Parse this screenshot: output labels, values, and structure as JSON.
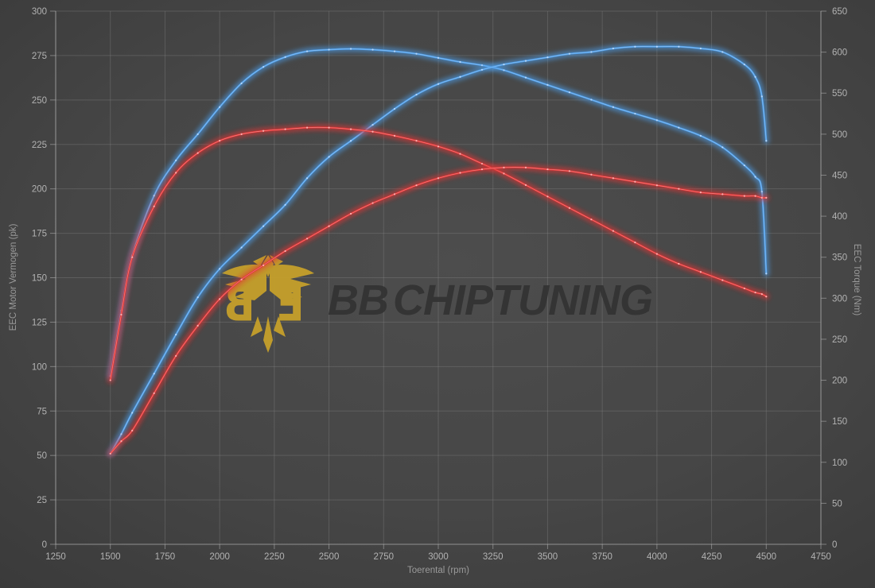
{
  "watermark": {
    "brand_bold": "BB",
    "brand_rest": "CHIPTUNING",
    "emblem_left_glyph": "B",
    "emblem_right_glyph": "E"
  },
  "colors": {
    "blue_curve": "#4b9be6",
    "blue_highlight": "#bcdcff",
    "red_curve": "#e03232",
    "red_highlight": "#ffb8b8",
    "emblem_gold": "#c49f2b",
    "emblem_gold_dark": "#ab8a20",
    "brand_text": "#333333",
    "grid_line": "#8a8a8a",
    "spine_line": "#b5b5b5",
    "tick_label": "#b2b2b2",
    "axis_title": "#9a9a9a"
  },
  "chart_data": {
    "type": "line",
    "title": "",
    "xlabel": "Toerental (rpm)",
    "ylabel_left": "EEC Motor Vermogen (pk)",
    "ylabel_right": "EEC Torque (Nm)",
    "x_range": [
      1250,
      4750
    ],
    "y_left_range": [
      0,
      300
    ],
    "y_right_range": [
      0,
      650
    ],
    "x_ticks": [
      1250,
      1500,
      1750,
      2000,
      2250,
      2500,
      2750,
      3000,
      3250,
      3500,
      3750,
      4000,
      4250,
      4500,
      4750
    ],
    "y_left_ticks": [
      0,
      25,
      50,
      75,
      100,
      125,
      150,
      175,
      200,
      225,
      250,
      275,
      300
    ],
    "y_right_ticks": [
      0,
      50,
      100,
      150,
      200,
      250,
      300,
      350,
      400,
      450,
      500,
      550,
      600,
      650
    ],
    "grid": true,
    "legend": false,
    "x": [
      1500,
      1550,
      1600,
      1700,
      1800,
      1900,
      2000,
      2100,
      2200,
      2300,
      2400,
      2500,
      2600,
      2700,
      2800,
      2900,
      3000,
      3100,
      3200,
      3300,
      3400,
      3500,
      3600,
      3700,
      3800,
      3900,
      4000,
      4100,
      4200,
      4300,
      4400,
      4450,
      4480,
      4500
    ],
    "series": [
      {
        "name": "blue-torque",
        "axis": "right",
        "color": "blue",
        "values": [
          205,
          285,
          352,
          425,
          468,
          500,
          533,
          562,
          582,
          594,
          601,
          603,
          604,
          603,
          601,
          598,
          593,
          588,
          584,
          578,
          569,
          560,
          551,
          542,
          533,
          525,
          517,
          508,
          498,
          484,
          462,
          448,
          430,
          330
        ]
      },
      {
        "name": "blue-power",
        "axis": "left",
        "color": "blue",
        "values": [
          51,
          62,
          74,
          96,
          118,
          139,
          155,
          167,
          179,
          191,
          206,
          218,
          227,
          236,
          245,
          253,
          259,
          263,
          267,
          270,
          272,
          274,
          276,
          277,
          279,
          280,
          280,
          280,
          279,
          277,
          270,
          263,
          252,
          227
        ]
      },
      {
        "name": "red-torque",
        "axis": "right",
        "color": "red",
        "values": [
          200,
          280,
          350,
          412,
          453,
          477,
          492,
          500,
          504,
          506,
          508,
          508,
          506,
          503,
          498,
          492,
          485,
          476,
          464,
          452,
          438,
          424,
          410,
          396,
          382,
          368,
          354,
          342,
          332,
          322,
          312,
          307,
          305,
          302
        ]
      },
      {
        "name": "red-power",
        "axis": "left",
        "color": "red",
        "values": [
          51,
          58,
          64,
          85,
          106,
          123,
          138,
          149,
          157,
          165,
          172,
          179,
          186,
          192,
          197,
          202,
          206,
          209,
          211,
          212,
          212,
          211,
          210,
          208,
          206,
          204,
          202,
          200,
          198,
          197,
          196,
          196,
          195,
          195
        ]
      }
    ]
  }
}
